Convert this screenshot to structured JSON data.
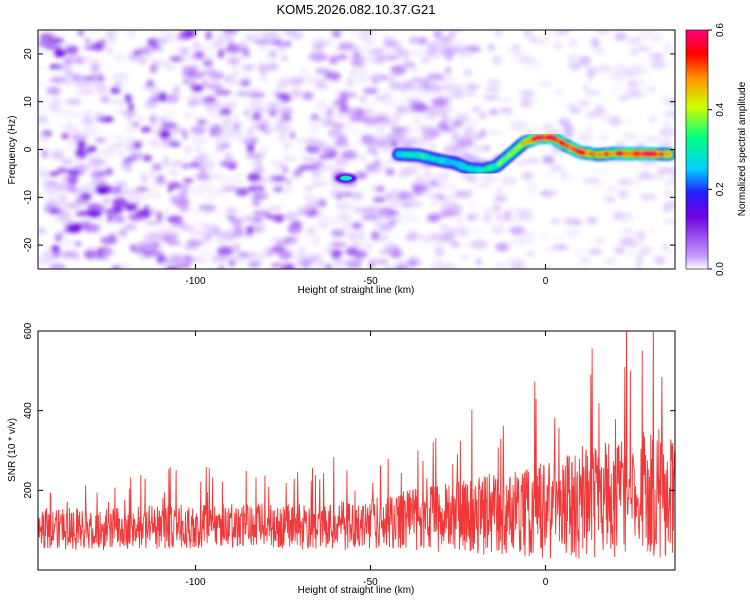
{
  "title": "KOM5.2026.082.10.37.G21",
  "colors": {
    "signal_line": "#f03838",
    "colormap": [
      "#ffffff",
      "#c8a0ff",
      "#7000e0",
      "#2020ff",
      "#00d0ff",
      "#00ff80",
      "#d0ff00",
      "#ff9000",
      "#ff0000",
      "#ff0080"
    ]
  },
  "chart_data": [
    {
      "type": "heatmap",
      "xlabel": "Height of straight line (km)",
      "ylabel": "Frequency (Hz)",
      "xlim": [
        -145,
        37
      ],
      "ylim": [
        -25,
        25
      ],
      "x_ticks": [
        -100,
        -50,
        0
      ],
      "y_ticks": [
        -20,
        -10,
        0,
        10,
        20
      ],
      "colorbar": {
        "label": "Normalized spectral amplitude",
        "range": [
          0.0,
          0.6
        ],
        "ticks": [
          0.0,
          0.2,
          0.4,
          0.6
        ]
      },
      "ridge": {
        "x": [
          -42,
          -36,
          -30,
          -26,
          -22,
          -18,
          -14,
          -10,
          -6,
          -2,
          2,
          6,
          10,
          15,
          20,
          25,
          30,
          35
        ],
        "y": [
          -1,
          -1.2,
          -2.3,
          -2.8,
          -4,
          -4.3,
          -3.5,
          -1,
          1.5,
          2.5,
          2.5,
          0.8,
          -0.6,
          -1.1,
          -0.8,
          -0.9,
          -0.9,
          -1
        ],
        "amplitude": [
          0.3,
          0.32,
          0.28,
          0.3,
          0.3,
          0.32,
          0.33,
          0.38,
          0.42,
          0.55,
          0.58,
          0.5,
          0.55,
          0.45,
          0.5,
          0.55,
          0.58,
          0.45
        ]
      },
      "spots": [
        {
          "x": -57,
          "y": -6,
          "amplitude": 0.3
        }
      ]
    },
    {
      "type": "line",
      "xlabel": "Height of straight line (km)",
      "ylabel": "SNR (10 * v/v)",
      "xlim": [
        -145,
        37
      ],
      "ylim": [
        0,
        600
      ],
      "x_ticks": [
        -100,
        -50,
        0
      ],
      "y_ticks": [
        200,
        400,
        600
      ],
      "series": [
        {
          "x_range": [
            -145,
            37
          ],
          "samples": 1500,
          "envelope": {
            "x": [
              -145,
              -100,
              -60,
              -40,
              -20,
              0,
              20,
              37
            ],
            "baseline": [
              100,
              110,
              110,
              125,
              135,
              155,
              180,
              195
            ],
            "spread": [
              70,
              75,
              80,
              100,
              130,
              170,
              210,
              230
            ]
          }
        }
      ]
    }
  ]
}
